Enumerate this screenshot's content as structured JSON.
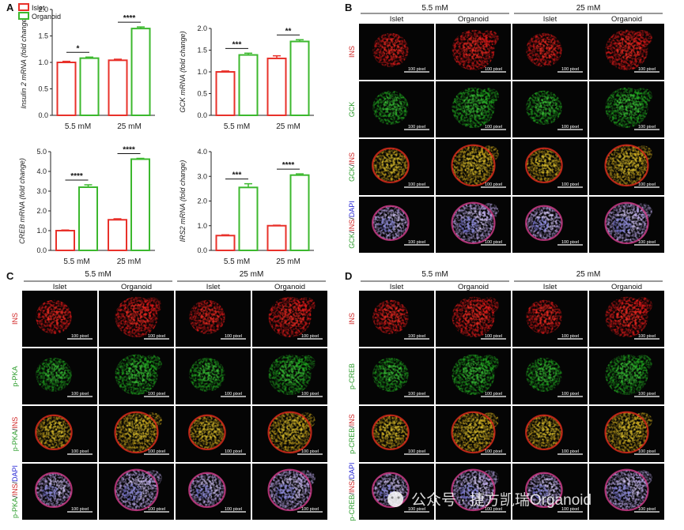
{
  "figure": {
    "colors": {
      "islet": "#e8312a",
      "organoid": "#3cb82e",
      "axis": "#222222",
      "ins": "#d12626",
      "green": "#2e9e2e",
      "dapi": "#2b2bd6"
    },
    "panel_labels": [
      "A",
      "B",
      "C",
      "D"
    ],
    "watermark": {
      "text": "公众号 · 捷方凯瑞Organoid"
    },
    "scale_bar_text": "100 pixel"
  },
  "chart_data": [
    {
      "type": "bar",
      "panel": "A",
      "ylabel": "Insulin 2 mRNA (fold change)",
      "categories": [
        "5.5 mM",
        "25 mM"
      ],
      "series": [
        {
          "name": "Islet",
          "values": [
            1.0,
            1.04
          ]
        },
        {
          "name": "Organoid",
          "values": [
            1.08,
            1.64
          ]
        }
      ],
      "errors": [
        [
          0.02,
          0.02
        ],
        [
          0.02,
          0.03
        ]
      ],
      "significance": [
        "*",
        "****"
      ],
      "ylim": [
        0,
        2.0
      ],
      "yticks": [
        "0.0",
        "0.5",
        "1.0",
        "1.5",
        "2.0"
      ],
      "legend": "top-left"
    },
    {
      "type": "bar",
      "panel": "A",
      "ylabel": "GCK mRNA (fold change)",
      "categories": [
        "5.5 mM",
        "25 mM"
      ],
      "series": [
        {
          "name": "Islet",
          "values": [
            1.0,
            1.31
          ]
        },
        {
          "name": "Organoid",
          "values": [
            1.39,
            1.7
          ]
        }
      ],
      "errors": [
        [
          0.02,
          0.06
        ],
        [
          0.04,
          0.04
        ]
      ],
      "significance": [
        "***",
        "**"
      ],
      "ylim": [
        0,
        2.0
      ],
      "yticks": [
        "0.0",
        "0.5",
        "1.0",
        "1.5",
        "2.0"
      ]
    },
    {
      "type": "bar",
      "panel": "A",
      "ylabel": "CREB mRNA (fold change)",
      "categories": [
        "5.5 mM",
        "25 mM"
      ],
      "series": [
        {
          "name": "Islet",
          "values": [
            1.0,
            1.55
          ]
        },
        {
          "name": "Organoid",
          "values": [
            3.2,
            4.62
          ]
        }
      ],
      "errors": [
        [
          0.03,
          0.05
        ],
        [
          0.12,
          0.04
        ]
      ],
      "significance": [
        "****",
        "****"
      ],
      "ylim": [
        0,
        5.0
      ],
      "yticks": [
        "0.0",
        "1.0",
        "2.0",
        "3.0",
        "4.0",
        "5.0"
      ]
    },
    {
      "type": "bar",
      "panel": "A",
      "ylabel": "IRS2 mRNA (fold change)",
      "categories": [
        "5.5 mM",
        "25 mM"
      ],
      "series": [
        {
          "name": "Islet",
          "values": [
            0.6,
            1.0
          ]
        },
        {
          "name": "Organoid",
          "values": [
            2.55,
            3.05
          ]
        }
      ],
      "errors": [
        [
          0.03,
          0.02
        ],
        [
          0.15,
          0.05
        ]
      ],
      "significance": [
        "***",
        "****"
      ],
      "ylim": [
        0,
        4.0
      ],
      "yticks": [
        "0.0",
        "1.0",
        "2.0",
        "3.0",
        "4.0"
      ]
    }
  ],
  "panels": {
    "B": {
      "conditions": [
        "5.5 mM",
        "25 mM"
      ],
      "columns": [
        "Islet",
        "Organoid",
        "Islet",
        "Organoid"
      ],
      "rows": [
        {
          "label": [
            {
              "t": "INS",
              "c": "ins"
            }
          ]
        },
        {
          "label": [
            {
              "t": "GCK",
              "c": "green"
            }
          ]
        },
        {
          "label": [
            {
              "t": "GCK",
              "c": "green"
            },
            {
              "t": "/",
              "c": "axis"
            },
            {
              "t": "INS",
              "c": "ins"
            }
          ]
        },
        {
          "label": [
            {
              "t": "GCK",
              "c": "green"
            },
            {
              "t": "/",
              "c": "axis"
            },
            {
              "t": "INS",
              "c": "ins"
            },
            {
              "t": "/",
              "c": "axis"
            },
            {
              "t": "DAPI",
              "c": "dapi"
            }
          ]
        }
      ]
    },
    "C": {
      "conditions": [
        "5.5 mM",
        "25 mM"
      ],
      "columns": [
        "Islet",
        "Organoid",
        "Islet",
        "Organoid"
      ],
      "rows": [
        {
          "label": [
            {
              "t": "INS",
              "c": "ins"
            }
          ]
        },
        {
          "label": [
            {
              "t": "p-PKA",
              "c": "green"
            }
          ]
        },
        {
          "label": [
            {
              "t": "p-PKA",
              "c": "green"
            },
            {
              "t": "/",
              "c": "axis"
            },
            {
              "t": "INS",
              "c": "ins"
            }
          ]
        },
        {
          "label": [
            {
              "t": "p-PKA",
              "c": "green"
            },
            {
              "t": "/",
              "c": "axis"
            },
            {
              "t": "INS",
              "c": "ins"
            },
            {
              "t": "/",
              "c": "axis"
            },
            {
              "t": "DAPI",
              "c": "dapi"
            }
          ]
        }
      ]
    },
    "D": {
      "conditions": [
        "5.5 mM",
        "25 mM"
      ],
      "columns": [
        "Islet",
        "Organoid",
        "Islet",
        "Organoid"
      ],
      "rows": [
        {
          "label": [
            {
              "t": "INS",
              "c": "ins"
            }
          ]
        },
        {
          "label": [
            {
              "t": "p-CREB",
              "c": "green"
            }
          ]
        },
        {
          "label": [
            {
              "t": "p-CREB",
              "c": "green"
            },
            {
              "t": "/",
              "c": "axis"
            },
            {
              "t": "INS",
              "c": "ins"
            }
          ]
        },
        {
          "label": [
            {
              "t": "p-CREB",
              "c": "green"
            },
            {
              "t": "/",
              "c": "axis"
            },
            {
              "t": "INS",
              "c": "ins"
            },
            {
              "t": "/",
              "c": "axis"
            },
            {
              "t": "DAPI",
              "c": "dapi"
            }
          ]
        }
      ]
    }
  }
}
